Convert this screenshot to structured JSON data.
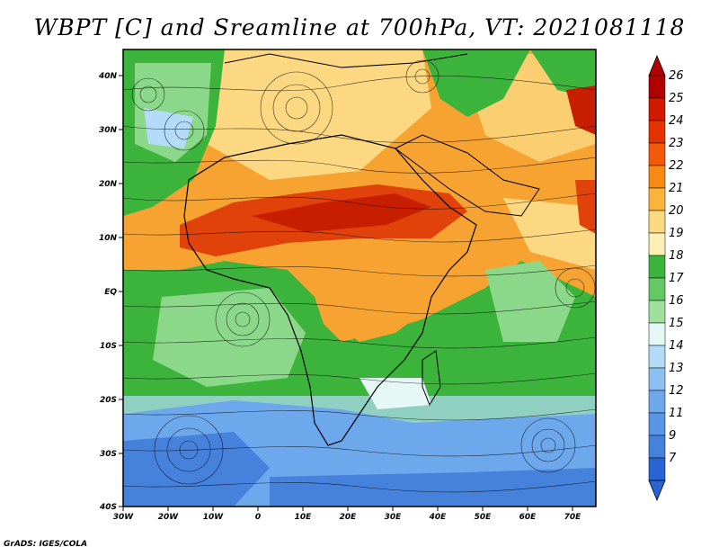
{
  "title": "WBPT [C] and Sreamline at 700hPa, VT: 2021081118",
  "credit": "GrADS: IGES/COLA",
  "map": {
    "lon_labels": [
      "30W",
      "20W",
      "10W",
      "0",
      "10E",
      "20E",
      "30E",
      "40E",
      "50E",
      "60E",
      "70E"
    ],
    "lat_labels": [
      "40N",
      "30N",
      "20N",
      "10N",
      "EQ",
      "10S",
      "20S",
      "30S",
      "40S"
    ]
  },
  "colorbar": {
    "labels": [
      "26",
      "25",
      "24",
      "23",
      "22",
      "21",
      "20",
      "19",
      "18",
      "17",
      "16",
      "15",
      "14",
      "13",
      "12",
      "11",
      "9",
      "7"
    ],
    "colors": [
      "#b10000",
      "#d11a00",
      "#e63200",
      "#f25a0a",
      "#f78a14",
      "#fab43c",
      "#fcd882",
      "#fcf0b4",
      "#3cb43c",
      "#64c864",
      "#a0e09c",
      "#e6f8f6",
      "#b4dcf8",
      "#8cc0f0",
      "#6ea8ec",
      "#5a96e6",
      "#4682dc",
      "#2864d2"
    ]
  },
  "field": {
    "colors": {
      "orange": "#f7a332",
      "light_orange": "#fcd882",
      "red": "#e0420a",
      "green": "#3cb43c",
      "light_green": "#8cd88a",
      "blue": "#6ea8ec",
      "deep_blue": "#4682dc"
    }
  }
}
